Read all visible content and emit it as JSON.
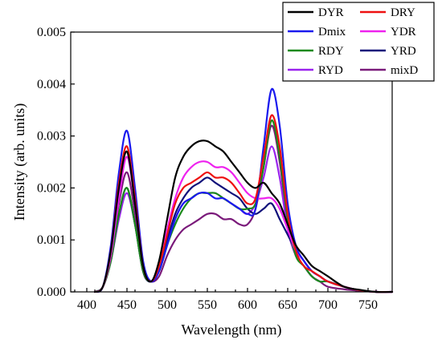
{
  "chart_data": {
    "type": "line",
    "title": "",
    "xlabel": "Wavelength (nm)",
    "ylabel": "Intensity (arb. units)",
    "xlim": [
      380,
      780
    ],
    "ylim": [
      0,
      0.005
    ],
    "x_ticks": [
      400,
      450,
      500,
      550,
      600,
      650,
      700,
      750
    ],
    "x_tick_labels": [
      "400",
      "450",
      "500",
      "550",
      "600",
      "650",
      "700",
      "750"
    ],
    "y_ticks": [
      0,
      0.001,
      0.002,
      0.003,
      0.004,
      0.005
    ],
    "y_tick_labels": [
      "0.000",
      "0.001",
      "0.002",
      "0.003",
      "0.004",
      "0.005"
    ],
    "grid": false,
    "legend_position": "top-right",
    "x": [
      410,
      420,
      430,
      440,
      450,
      460,
      470,
      480,
      490,
      500,
      510,
      520,
      530,
      540,
      550,
      560,
      570,
      580,
      590,
      600,
      610,
      620,
      630,
      640,
      650,
      660,
      670,
      680,
      690,
      700,
      720,
      740,
      760,
      780
    ],
    "series": [
      {
        "name": "DYR",
        "color": "#000000",
        "values": [
          0,
          0.0001,
          0.0008,
          0.002,
          0.0027,
          0.0017,
          0.0005,
          0.0002,
          0.0006,
          0.0014,
          0.0022,
          0.0026,
          0.0028,
          0.0029,
          0.0029,
          0.0028,
          0.0027,
          0.0025,
          0.0023,
          0.0021,
          0.002,
          0.0021,
          0.0019,
          0.0017,
          0.0013,
          0.0009,
          0.0007,
          0.0005,
          0.0004,
          0.0003,
          0.0001,
          4e-05,
          0,
          0
        ]
      },
      {
        "name": "DRY",
        "color": "#ee1111",
        "values": [
          0,
          0.0001,
          0.0008,
          0.0021,
          0.0028,
          0.0018,
          0.0005,
          0.0002,
          0.0005,
          0.0011,
          0.0017,
          0.002,
          0.0021,
          0.0022,
          0.0023,
          0.0022,
          0.0022,
          0.0021,
          0.0019,
          0.0017,
          0.0018,
          0.0026,
          0.0034,
          0.0028,
          0.0015,
          0.0008,
          0.0005,
          0.0004,
          0.0003,
          0.0002,
          0.0001,
          3e-05,
          0,
          0
        ]
      },
      {
        "name": "Dmix",
        "color": "#1a1aee",
        "values": [
          0,
          0.0001,
          0.0009,
          0.0023,
          0.0031,
          0.002,
          0.0006,
          0.0002,
          0.0004,
          0.0009,
          0.0014,
          0.0017,
          0.0018,
          0.0019,
          0.0019,
          0.0018,
          0.0018,
          0.0017,
          0.0016,
          0.0015,
          0.0016,
          0.0028,
          0.0039,
          0.0032,
          0.0017,
          0.0009,
          0.0006,
          0.0004,
          0.0003,
          0.0002,
          0.0001,
          3e-05,
          0,
          0
        ]
      },
      {
        "name": "YDR",
        "color": "#ee22ee",
        "values": [
          0,
          0.0001,
          0.0007,
          0.0018,
          0.0026,
          0.0017,
          0.0005,
          0.0002,
          0.0005,
          0.0012,
          0.0018,
          0.0022,
          0.0024,
          0.0025,
          0.0025,
          0.0024,
          0.0024,
          0.0023,
          0.0021,
          0.0019,
          0.0018,
          0.0018,
          0.0018,
          0.0016,
          0.0012,
          0.0008,
          0.0006,
          0.0004,
          0.0003,
          0.0002,
          0.0001,
          3e-05,
          0,
          0
        ]
      },
      {
        "name": "RDY",
        "color": "#1a8a1a",
        "values": [
          0,
          0.0001,
          0.0006,
          0.0015,
          0.002,
          0.0013,
          0.0004,
          0.0002,
          0.0004,
          0.0009,
          0.0013,
          0.0016,
          0.0018,
          0.0019,
          0.0019,
          0.0019,
          0.0018,
          0.0017,
          0.0016,
          0.0016,
          0.0017,
          0.0024,
          0.0033,
          0.0026,
          0.0014,
          0.0007,
          0.0005,
          0.0003,
          0.0002,
          0.0002,
          0.0001,
          3e-05,
          0,
          0
        ]
      },
      {
        "name": "YRD",
        "color": "#10107a",
        "values": [
          0,
          0.0001,
          0.0006,
          0.0015,
          0.002,
          0.0013,
          0.0004,
          0.0002,
          0.0005,
          0.001,
          0.0015,
          0.0018,
          0.002,
          0.0021,
          0.0022,
          0.0021,
          0.002,
          0.0019,
          0.0018,
          0.0016,
          0.0015,
          0.0016,
          0.0017,
          0.0014,
          0.0011,
          0.0008,
          0.0006,
          0.0004,
          0.0003,
          0.0002,
          0.0001,
          3e-05,
          0,
          0
        ]
      },
      {
        "name": "RYD",
        "color": "#9a22ee",
        "values": [
          0,
          0.0001,
          0.0006,
          0.0014,
          0.0019,
          0.0013,
          0.0004,
          0.0002,
          0.0004,
          0.0009,
          0.0014,
          0.0017,
          0.0018,
          0.0019,
          0.0019,
          0.0019,
          0.0018,
          0.0017,
          0.0016,
          0.0015,
          0.0017,
          0.0022,
          0.0028,
          0.0022,
          0.0012,
          0.0007,
          0.0005,
          0.0003,
          0.0002,
          0.0002,
          0.0001,
          3e-05,
          0,
          0
        ]
      },
      {
        "name": "mixD",
        "color": "#7a1a7a",
        "values": [
          0,
          0.0001,
          0.0007,
          0.0017,
          0.0023,
          0.0015,
          0.0004,
          0.0002,
          0.0003,
          0.0007,
          0.001,
          0.0012,
          0.0013,
          0.0014,
          0.0015,
          0.0015,
          0.0014,
          0.0014,
          0.0013,
          0.0013,
          0.0016,
          0.0024,
          0.0032,
          0.0025,
          0.0013,
          0.0007,
          0.0005,
          0.0003,
          0.0002,
          0.0001,
          5e-05,
          2e-05,
          0,
          0
        ]
      }
    ]
  }
}
